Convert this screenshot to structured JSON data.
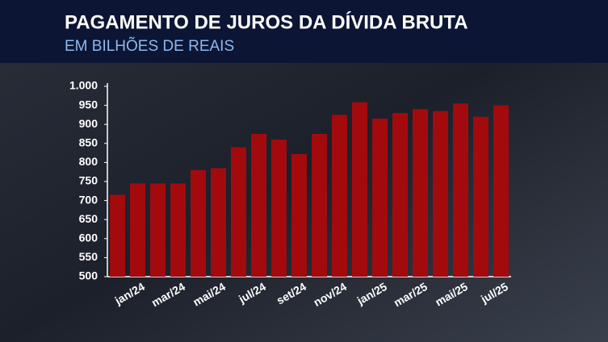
{
  "chart_data": {
    "type": "bar",
    "title": "PAGAMENTO DE JUROS DA DÍVIDA BRUTA",
    "subtitle": "EM BILHÕES DE REAIS",
    "categories": [
      null,
      "jan/24",
      null,
      "mar/24",
      null,
      "mai/24",
      null,
      "jul/24",
      null,
      "set/24",
      null,
      "nov/24",
      null,
      "jan/25",
      null,
      "mar/25",
      null,
      "mai/25",
      null,
      "jul/25"
    ],
    "values": [
      715,
      745,
      745,
      745,
      780,
      785,
      840,
      875,
      860,
      822,
      875,
      925,
      958,
      915,
      930,
      940,
      935,
      955,
      920,
      950
    ],
    "color": "#a30a0e",
    "ylim": [
      500,
      1000
    ],
    "yticks": [
      500,
      550,
      600,
      650,
      700,
      750,
      800,
      850,
      900,
      950,
      {
        "value": 1000,
        "label": "1.000"
      }
    ],
    "grid": false
  }
}
